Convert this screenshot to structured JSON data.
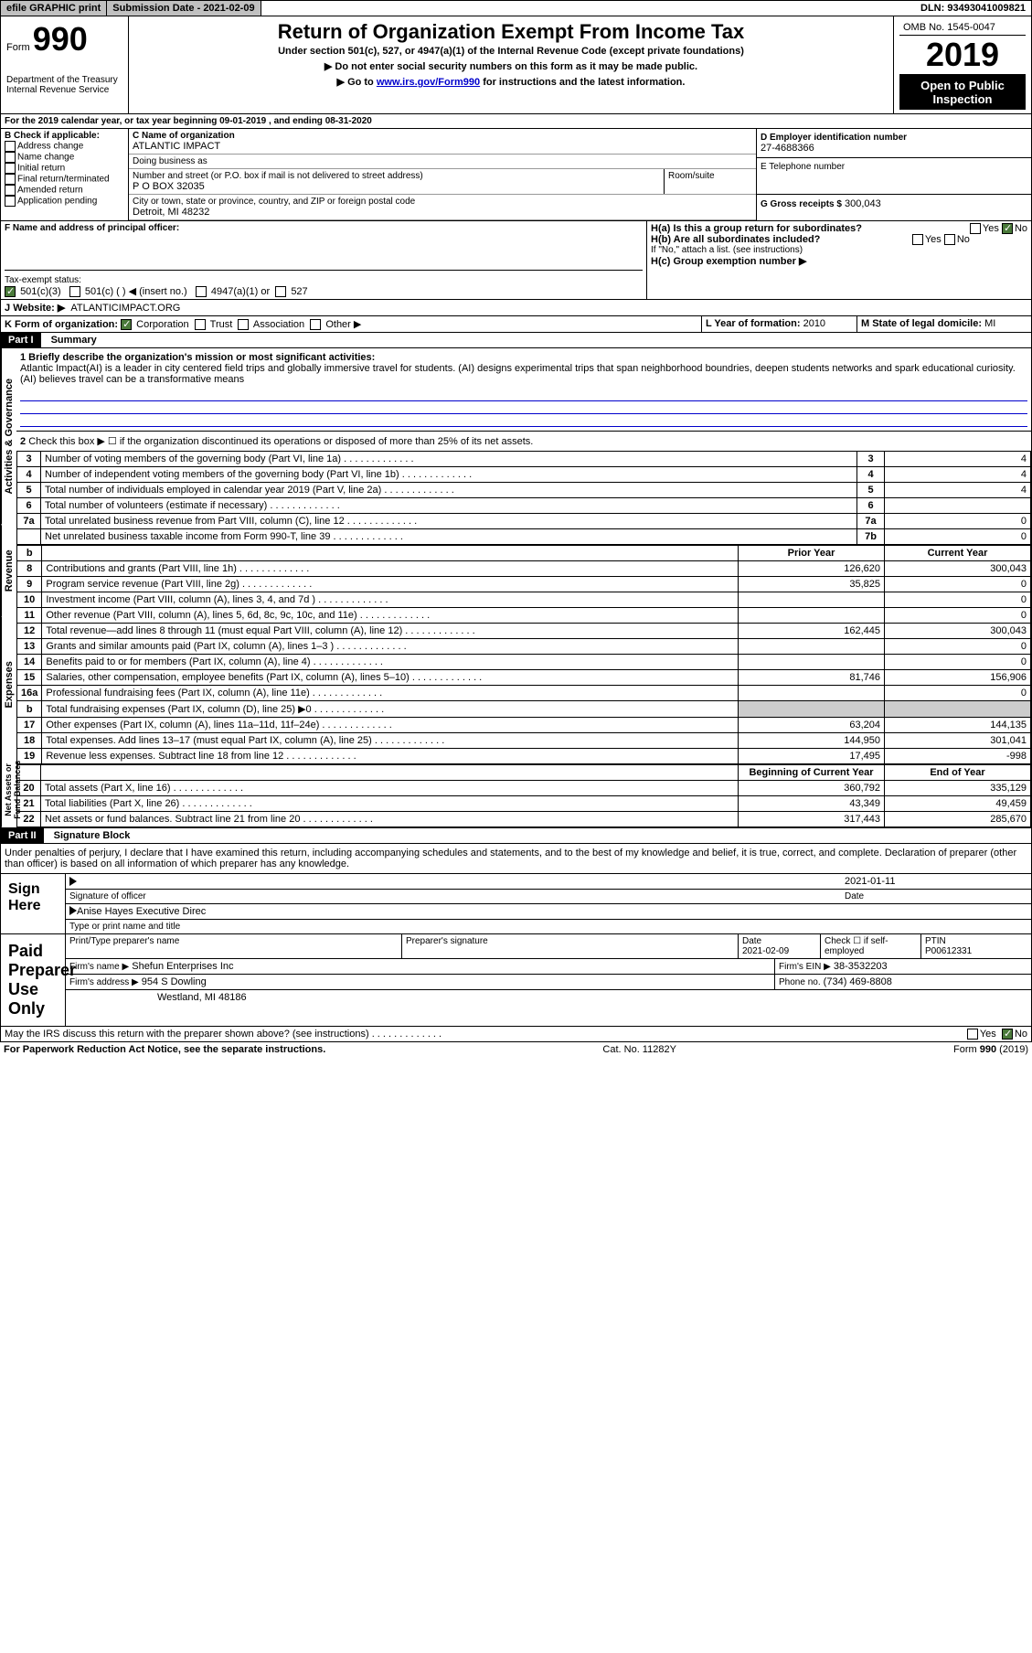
{
  "topbar": {
    "efile": "efile GRAPHIC print",
    "submission_label": "Submission Date - 2021-02-09",
    "dln": "DLN: 93493041009821"
  },
  "header": {
    "form_label": "Form",
    "form_number": "990",
    "dept": "Department of the Treasury\nInternal Revenue Service",
    "title": "Return of Organization Exempt From Income Tax",
    "subtitle": "Under section 501(c), 527, or 4947(a)(1) of the Internal Revenue Code (except private foundations)",
    "note1": "▶ Do not enter social security numbers on this form as it may be made public.",
    "note2_pre": "▶ Go to ",
    "note2_link": "www.irs.gov/Form990",
    "note2_post": " for instructions and the latest information.",
    "omb": "OMB No. 1545-0047",
    "year": "2019",
    "open": "Open to Public Inspection"
  },
  "line_a": "For the 2019 calendar year, or tax year beginning 09-01-2019   , and ending 08-31-2020",
  "section_b": {
    "header": "B Check if applicable:",
    "items": [
      "Address change",
      "Name change",
      "Initial return",
      "Final return/terminated",
      "Amended return",
      "Application pending"
    ]
  },
  "section_c": {
    "name_label": "C Name of organization",
    "name": "ATLANTIC IMPACT",
    "dba_label": "Doing business as",
    "dba": "",
    "addr_label": "Number and street (or P.O. box if mail is not delivered to street address)",
    "room_label": "Room/suite",
    "addr": "P O BOX 32035",
    "city_label": "City or town, state or province, country, and ZIP or foreign postal code",
    "city": "Detroit, MI  48232"
  },
  "section_d": {
    "ein_label": "D Employer identification number",
    "ein": "27-4688366",
    "phone_label": "E Telephone number",
    "phone": "",
    "gross_label": "G Gross receipts $",
    "gross": "300,043"
  },
  "section_f": {
    "label": "F  Name and address of principal officer:",
    "value": ""
  },
  "section_h": {
    "ha_label": "H(a)  Is this a group return for subordinates?",
    "hb_label": "H(b)  Are all subordinates included?",
    "hb_note": "If \"No,\" attach a list. (see instructions)",
    "hc_label": "H(c)  Group exemption number ▶",
    "yes": "Yes",
    "no": "No"
  },
  "tax_status": {
    "label": "Tax-exempt status:",
    "opt1": "501(c)(3)",
    "opt2": "501(c) (   ) ◀ (insert no.)",
    "opt3": "4947(a)(1) or",
    "opt4": "527"
  },
  "website": {
    "label": "Website: ▶",
    "value": "ATLANTICIMPACT.ORG"
  },
  "section_k": {
    "label": "K Form of organization:",
    "corp": "Corporation",
    "trust": "Trust",
    "assoc": "Association",
    "other": "Other ▶"
  },
  "section_l": {
    "label": "L Year of formation:",
    "value": "2010"
  },
  "section_m": {
    "label": "M State of legal domicile:",
    "value": "MI"
  },
  "part1": {
    "label": "Part I",
    "title": "Summary"
  },
  "mission": {
    "line1_label": "1  Briefly describe the organization's mission or most significant activities:",
    "text": "Atlantic Impact(AI) is a leader in city centered field trips and globally immersive travel for students. (AI) designs experimental trips that span neighborhood boundries, deepen students networks and spark educational curiosity. (AI) believes travel can be a transformative means"
  },
  "line2": "Check this box ▶ ☐  if the organization discontinued its operations or disposed of more than 25% of its net assets.",
  "side_labels": {
    "governance": "Activities & Governance",
    "revenue": "Revenue",
    "expenses": "Expenses",
    "netassets": "Net Assets or Fund Balances"
  },
  "gov_rows": [
    {
      "n": "3",
      "label": "Number of voting members of the governing body (Part VI, line 1a)",
      "box": "3",
      "val": "4"
    },
    {
      "n": "4",
      "label": "Number of independent voting members of the governing body (Part VI, line 1b)",
      "box": "4",
      "val": "4"
    },
    {
      "n": "5",
      "label": "Total number of individuals employed in calendar year 2019 (Part V, line 2a)",
      "box": "5",
      "val": "4"
    },
    {
      "n": "6",
      "label": "Total number of volunteers (estimate if necessary)",
      "box": "6",
      "val": ""
    },
    {
      "n": "7a",
      "label": "Total unrelated business revenue from Part VIII, column (C), line 12",
      "box": "7a",
      "val": "0"
    },
    {
      "n": "",
      "label": "Net unrelated business taxable income from Form 990-T, line 39",
      "box": "7b",
      "val": "0"
    }
  ],
  "col_headers": {
    "prior": "Prior Year",
    "current": "Current Year"
  },
  "rev_rows": [
    {
      "n": "8",
      "label": "Contributions and grants (Part VIII, line 1h)",
      "prior": "126,620",
      "curr": "300,043"
    },
    {
      "n": "9",
      "label": "Program service revenue (Part VIII, line 2g)",
      "prior": "35,825",
      "curr": "0"
    },
    {
      "n": "10",
      "label": "Investment income (Part VIII, column (A), lines 3, 4, and 7d )",
      "prior": "",
      "curr": "0"
    },
    {
      "n": "11",
      "label": "Other revenue (Part VIII, column (A), lines 5, 6d, 8c, 9c, 10c, and 11e)",
      "prior": "",
      "curr": "0"
    },
    {
      "n": "12",
      "label": "Total revenue—add lines 8 through 11 (must equal Part VIII, column (A), line 12)",
      "prior": "162,445",
      "curr": "300,043"
    }
  ],
  "exp_rows": [
    {
      "n": "13",
      "label": "Grants and similar amounts paid (Part IX, column (A), lines 1–3 )",
      "prior": "",
      "curr": "0"
    },
    {
      "n": "14",
      "label": "Benefits paid to or for members (Part IX, column (A), line 4)",
      "prior": "",
      "curr": "0"
    },
    {
      "n": "15",
      "label": "Salaries, other compensation, employee benefits (Part IX, column (A), lines 5–10)",
      "prior": "81,746",
      "curr": "156,906"
    },
    {
      "n": "16a",
      "label": "Professional fundraising fees (Part IX, column (A), line 11e)",
      "prior": "",
      "curr": "0"
    },
    {
      "n": "b",
      "label": "Total fundraising expenses (Part IX, column (D), line 25) ▶0",
      "prior": "grey",
      "curr": "grey"
    },
    {
      "n": "17",
      "label": "Other expenses (Part IX, column (A), lines 11a–11d, 11f–24e)",
      "prior": "63,204",
      "curr": "144,135"
    },
    {
      "n": "18",
      "label": "Total expenses. Add lines 13–17 (must equal Part IX, column (A), line 25)",
      "prior": "144,950",
      "curr": "301,041"
    },
    {
      "n": "19",
      "label": "Revenue less expenses. Subtract line 18 from line 12",
      "prior": "17,495",
      "curr": "-998"
    }
  ],
  "na_headers": {
    "begin": "Beginning of Current Year",
    "end": "End of Year"
  },
  "na_rows": [
    {
      "n": "20",
      "label": "Total assets (Part X, line 16)",
      "prior": "360,792",
      "curr": "335,129"
    },
    {
      "n": "21",
      "label": "Total liabilities (Part X, line 26)",
      "prior": "43,349",
      "curr": "49,459"
    },
    {
      "n": "22",
      "label": "Net assets or fund balances. Subtract line 21 from line 20",
      "prior": "317,443",
      "curr": "285,670"
    }
  ],
  "part2": {
    "label": "Part II",
    "title": "Signature Block"
  },
  "sig_decl": "Under penalties of perjury, I declare that I have examined this return, including accompanying schedules and statements, and to the best of my knowledge and belief, it is true, correct, and complete. Declaration of preparer (other than officer) is based on all information of which preparer has any knowledge.",
  "sign_here": {
    "label": "Sign Here",
    "sig_officer": "Signature of officer",
    "date_label": "Date",
    "date": "2021-01-11",
    "name": "Anise Hayes  Executive Direc",
    "name_label": "Type or print name and title"
  },
  "preparer": {
    "label": "Paid Preparer Use Only",
    "print_name_label": "Print/Type preparer's name",
    "sig_label": "Preparer's signature",
    "date_label": "Date",
    "date": "2021-02-09",
    "check_label": "Check ☐ if self-employed",
    "ptin_label": "PTIN",
    "ptin": "P00612331",
    "firm_name_label": "Firm's name    ▶",
    "firm_name": "Shefun Enterprises Inc",
    "firm_ein_label": "Firm's EIN ▶",
    "firm_ein": "38-3532203",
    "firm_addr_label": "Firm's address ▶",
    "firm_addr1": "954 S Dowling",
    "firm_addr2": "Westland, MI  48186",
    "phone_label": "Phone no.",
    "phone": "(734) 469-8808"
  },
  "discuss": {
    "label": "May the IRS discuss this return with the preparer shown above? (see instructions)",
    "yes": "Yes",
    "no": "No"
  },
  "footer": {
    "paperwork": "For Paperwork Reduction Act Notice, see the separate instructions.",
    "cat": "Cat. No. 11282Y",
    "form": "Form 990 (2019)"
  }
}
